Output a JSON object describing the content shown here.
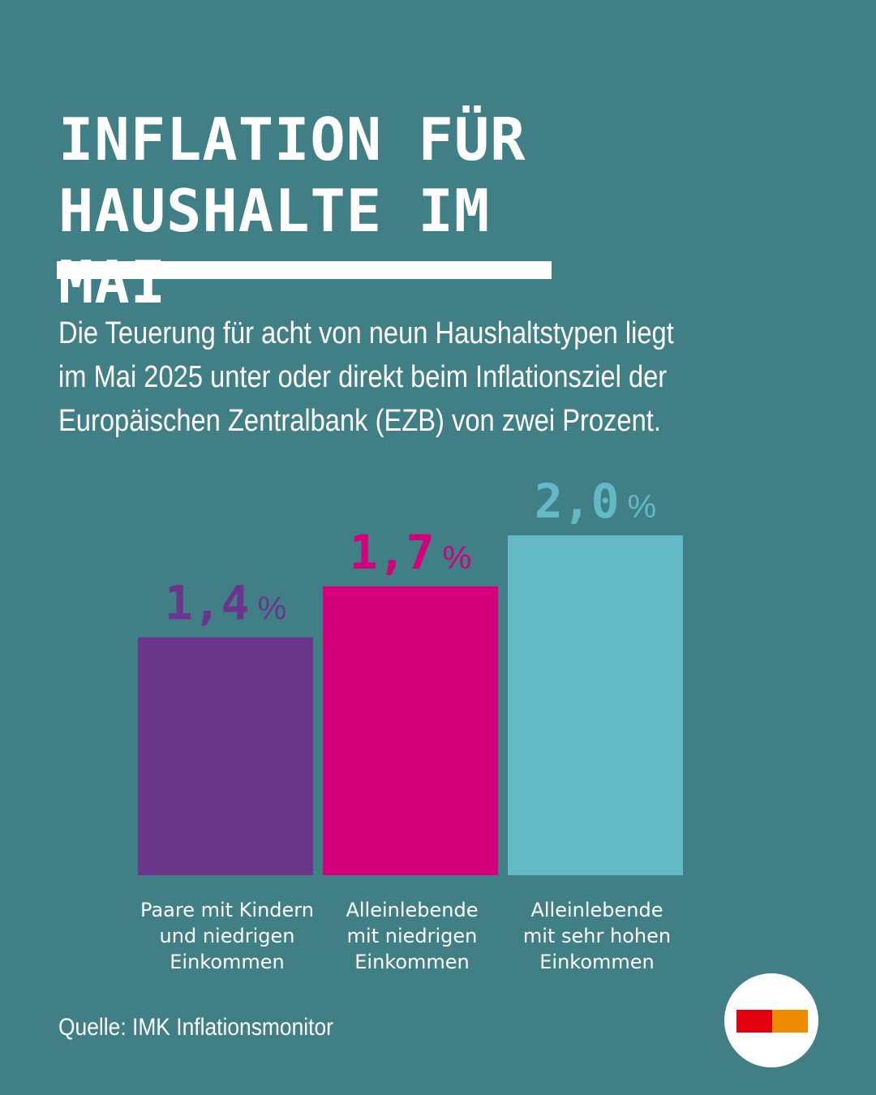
{
  "title_lines": [
    "INFLATION FÜR",
    "HAUSHALTE IM MAI"
  ],
  "lead_lines": [
    "Die Teuerung für acht von neun Haushaltstypen liegt",
    "im Mai 2025 unter oder direkt beim Inflationsziel der",
    "Europäischen Zentralbank (EZB) von zwei Prozent."
  ],
  "source": "Quelle: IMK Inflationsmonitor",
  "chart_data": {
    "type": "bar",
    "title": "",
    "xlabel": "",
    "ylabel": "",
    "unit": "%",
    "ylim": [
      0,
      2.0
    ],
    "grid": false,
    "legend": "none",
    "categories": [
      [
        "Paare mit Kindern",
        "und niedrigen",
        "Einkommen"
      ],
      [
        "Alleinlebende",
        "mit niedrigen",
        "Einkommen"
      ],
      [
        "Alleinlebende",
        "mit sehr hohen",
        "Einkommen"
      ]
    ],
    "values": [
      1.4,
      1.7,
      2.0
    ],
    "value_labels": [
      "1,4",
      "1,7",
      "2,0"
    ],
    "colors": [
      "#6a358a",
      "#d3007a",
      "#63bac6"
    ]
  },
  "colors": {
    "background": "#417f87",
    "text": "#ffffff",
    "logo_left": "#e2000f",
    "logo_right": "#f08a00"
  },
  "logo": {
    "icon": "brand-logo-icon"
  }
}
